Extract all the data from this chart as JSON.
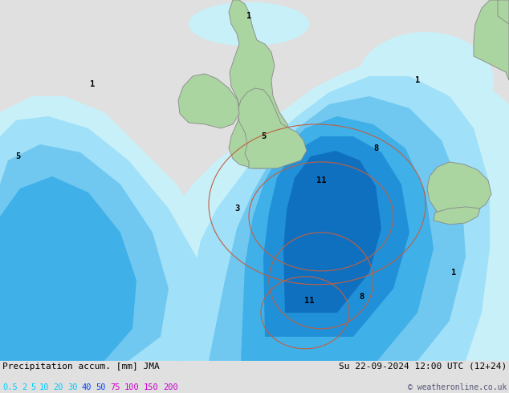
{
  "title_left": "Precipitation accum. [mm] JMA",
  "title_right": "Su 22-09-2024 12:00 UTC (12+24)",
  "copyright": "© weatheronline.co.uk",
  "colorbar_values": [
    "0.5",
    "2",
    "5",
    "10",
    "20",
    "30",
    "40",
    "50",
    "75",
    "100",
    "150",
    "200"
  ],
  "colorbar_text_colors": [
    "#00ccff",
    "#00ccff",
    "#00ccff",
    "#00ccff",
    "#00ccff",
    "#00ccff",
    "#0044ff",
    "#0044ff",
    "#cc00cc",
    "#cc00cc",
    "#cc00cc",
    "#cc00cc"
  ],
  "bg_land": "#e0e0e0",
  "bg_sea": "#e0e0e0",
  "land_green": "#aad4a0",
  "land_outline": "#888888",
  "precip_0_5": "#c8f0f8",
  "precip_2": "#a0e0f8",
  "precip_5": "#70c8f0",
  "precip_10": "#40b0e8",
  "precip_20": "#2090d8",
  "precip_30": "#1070c0",
  "contour_color": "#c06040",
  "label_color": "#000000",
  "bottom_bar_color": "#f0f0f0",
  "fig_width": 6.34,
  "fig_height": 4.9,
  "dpi": 100
}
